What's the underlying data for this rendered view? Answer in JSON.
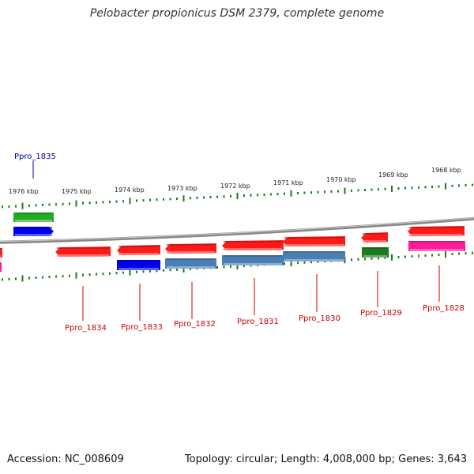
{
  "title": "Pelobacter propionicus DSM 2379, complete genome",
  "footer": {
    "accession": "Accession: NC_008609",
    "topology": "Topology: circular; Length: 4,008,000 bp; Genes: 3,643"
  },
  "colors": {
    "red": "#ff1a1a",
    "blue": "#0000ee",
    "steel": "#4a7fb5",
    "green": "#22aa22",
    "darkgreen": "#1e7a1e",
    "pink": "#ff1a9a",
    "label_red": "#cc0000",
    "label_blue": "#000099",
    "backbone": "#888888",
    "tick_green": "#1a7a1a"
  },
  "kbp_ticks": [
    "1976 kbp",
    "1975 kbp",
    "1974 kbp",
    "1973 kbp",
    "1972 kbp",
    "1971 kbp",
    "1970 kbp",
    "1969 kbp",
    "1968 kbp"
  ],
  "labels_top": [
    {
      "text": "Ppro_1835",
      "color": "blue"
    }
  ],
  "labels_bottom": [
    {
      "text": "Ppro_1834"
    },
    {
      "text": "Ppro_1833"
    },
    {
      "text": "Ppro_1832"
    },
    {
      "text": "Ppro_1831"
    },
    {
      "text": "Ppro_1830"
    },
    {
      "text": "Ppro_1829"
    },
    {
      "text": "Ppro_1828"
    }
  ],
  "genes_forward": [
    {
      "color": "green",
      "dir": "none"
    },
    {
      "color": "blue",
      "dir": "right"
    }
  ],
  "genes_reverse_red": [
    {
      "color": "red",
      "dir": "left"
    },
    {
      "color": "red",
      "dir": "left"
    },
    {
      "color": "red",
      "dir": "left"
    },
    {
      "color": "red",
      "dir": "left"
    },
    {
      "color": "red",
      "dir": "left"
    },
    {
      "color": "red",
      "dir": "left"
    },
    {
      "color": "red",
      "dir": "left"
    }
  ],
  "genes_reverse_second": [
    {
      "color": "blue"
    },
    {
      "color": "steel"
    },
    {
      "color": "steel"
    },
    {
      "color": "steel"
    },
    {
      "color": "darkgreen"
    },
    {
      "color": "pink"
    }
  ]
}
